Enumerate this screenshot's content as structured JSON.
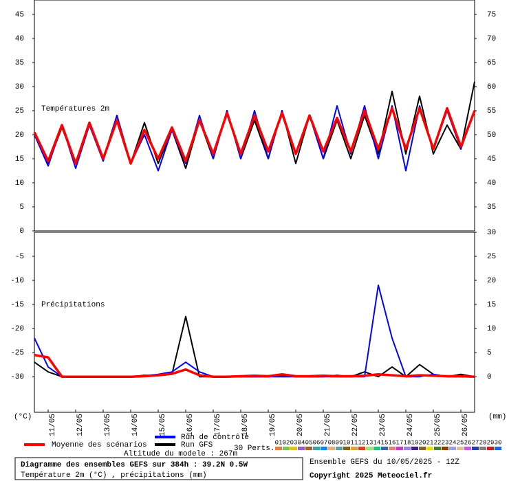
{
  "chart_data": [
    {
      "type": "line",
      "label": "Températures 2m",
      "y_unit": "(°C)",
      "y2_unit": "(mm)",
      "x": [
        0,
        12,
        24,
        36,
        48,
        60,
        72,
        84,
        96,
        108,
        120,
        132,
        144,
        156,
        168,
        180,
        192,
        204,
        216,
        228,
        240,
        252,
        264,
        276,
        288,
        300,
        312,
        324,
        336,
        348,
        360,
        372,
        384
      ],
      "xlim": [
        0,
        384
      ],
      "ylim": [
        0,
        48
      ],
      "yticks": [
        0,
        5,
        10,
        15,
        20,
        25,
        30,
        35,
        40,
        45
      ],
      "y2lim": [
        30,
        78
      ],
      "y2ticks": [
        35,
        40,
        45,
        50,
        55,
        60,
        65,
        70,
        75
      ],
      "series": [
        {
          "name": "Moyenne des scénarios",
          "color": "#ff0000",
          "values": [
            20.5,
            14.5,
            22,
            14,
            22.5,
            15,
            23,
            14,
            21,
            15,
            21.5,
            14.5,
            23,
            16,
            24.5,
            16,
            24,
            16.5,
            24.5,
            16,
            24,
            16.5,
            23.5,
            16.5,
            25,
            17,
            25.5,
            17,
            25.5,
            17,
            25.5,
            17.5,
            25
          ]
        },
        {
          "name": "Run de contrôle",
          "color": "#0000ff",
          "values": [
            20,
            13.5,
            22,
            13,
            22,
            14.5,
            24,
            14,
            20,
            12.5,
            21,
            14,
            24,
            15,
            25,
            15,
            25,
            15,
            25,
            16,
            24,
            15,
            26,
            16,
            26,
            15,
            26,
            12.5,
            26,
            17,
            25,
            17,
            25
          ]
        },
        {
          "name": "Run GFS",
          "color": "#000000",
          "values": [
            20,
            14,
            21.5,
            14,
            22,
            15,
            24,
            14,
            22.5,
            14,
            21,
            13,
            23,
            15,
            25,
            15,
            23,
            15,
            25,
            14,
            24,
            15,
            23,
            15,
            24,
            16,
            29,
            16,
            28,
            16,
            22,
            17,
            31
          ]
        }
      ]
    },
    {
      "type": "line",
      "label": "Précipitations",
      "x": [
        0,
        12,
        24,
        36,
        48,
        60,
        72,
        84,
        96,
        108,
        120,
        132,
        144,
        156,
        168,
        180,
        192,
        204,
        216,
        228,
        240,
        252,
        264,
        276,
        288,
        300,
        312,
        324,
        336,
        348,
        360,
        372,
        384
      ],
      "xlim": [
        0,
        384
      ],
      "xticks": [
        {
          "value": 12,
          "label": "11/05"
        },
        {
          "value": 36,
          "label": "12/05"
        },
        {
          "value": 60,
          "label": "13/05"
        },
        {
          "value": 84,
          "label": "14/05"
        },
        {
          "value": 108,
          "label": "15/05"
        },
        {
          "value": 132,
          "label": "16/05"
        },
        {
          "value": 156,
          "label": "17/05"
        },
        {
          "value": 180,
          "label": "18/05"
        },
        {
          "value": 204,
          "label": "19/05"
        },
        {
          "value": 228,
          "label": "20/05"
        },
        {
          "value": 252,
          "label": "21/05"
        },
        {
          "value": 276,
          "label": "22/05"
        },
        {
          "value": 300,
          "label": "23/05"
        },
        {
          "value": 324,
          "label": "24/05"
        },
        {
          "value": 348,
          "label": "25/05"
        },
        {
          "value": 372,
          "label": "26/05"
        }
      ],
      "ylim": [
        -37.4,
        0
      ],
      "yticks": [
        -30,
        -25,
        -20,
        -15,
        -10,
        -5
      ],
      "y2lim": [
        -7.4,
        30
      ],
      "y2ticks": [
        0,
        5,
        10,
        15,
        20,
        25,
        30
      ],
      "series": [
        {
          "name": "Moyenne des scénarios",
          "color": "#ff0000",
          "axis": "y2",
          "values": [
            4.5,
            4,
            0,
            0,
            0,
            0,
            0,
            0,
            0.1,
            0.3,
            0.6,
            1.5,
            0.3,
            0,
            0,
            0.1,
            0.2,
            0.1,
            0.5,
            0.1,
            0.1,
            0.2,
            0.1,
            0.1,
            0.2,
            0.5,
            0.3,
            0.1,
            0.3,
            0.2,
            0.1,
            0.1,
            0
          ]
        },
        {
          "name": "Run de contrôle",
          "color": "#0000ff",
          "axis": "y2",
          "values": [
            8,
            2,
            0,
            0,
            0,
            0,
            0,
            0,
            0.2,
            0.5,
            1,
            3,
            1,
            0,
            0,
            0,
            0,
            0,
            0,
            0,
            0,
            0,
            0,
            0,
            0,
            19,
            8,
            0,
            0,
            0.5,
            0,
            0,
            0
          ]
        },
        {
          "name": "Run GFS",
          "color": "#000000",
          "axis": "y2",
          "values": [
            3,
            1,
            0,
            0,
            0,
            0,
            0,
            0,
            0.3,
            0.2,
            0.5,
            12.5,
            0,
            0,
            0,
            0,
            0,
            0,
            0.2,
            0,
            0,
            0,
            0.3,
            0,
            1,
            0,
            2,
            0,
            2.5,
            0.5,
            0,
            0.5,
            0
          ]
        }
      ]
    }
  ],
  "altitude": "Altitude du modele : 267m",
  "perturbations": {
    "label": "30 Perts.",
    "members": [
      {
        "name": "01",
        "color": "#e08040"
      },
      {
        "name": "02",
        "color": "#80c060"
      },
      {
        "name": "03",
        "color": "#e0c020"
      },
      {
        "name": "04",
        "color": "#9060c0"
      },
      {
        "name": "05",
        "color": "#a06030"
      },
      {
        "name": "06",
        "color": "#40a0a0"
      },
      {
        "name": "07",
        "color": "#2080e0"
      },
      {
        "name": "08",
        "color": "#e0b080"
      },
      {
        "name": "09",
        "color": "#60a0a0"
      },
      {
        "name": "10",
        "color": "#806020"
      },
      {
        "name": "11",
        "color": "#e0a040"
      },
      {
        "name": "12",
        "color": "#e04020"
      },
      {
        "name": "13",
        "color": "#a0e080"
      },
      {
        "name": "14",
        "color": "#20c080"
      },
      {
        "name": "15",
        "color": "#4060a0"
      },
      {
        "name": "16",
        "color": "#e08080"
      },
      {
        "name": "17",
        "color": "#c040c0"
      },
      {
        "name": "18",
        "color": "#a080e0"
      },
      {
        "name": "19",
        "color": "#402080"
      },
      {
        "name": "20",
        "color": "#806040"
      },
      {
        "name": "21",
        "color": "#e0e020"
      },
      {
        "name": "22",
        "color": "#408040"
      },
      {
        "name": "23",
        "color": "#804000"
      },
      {
        "name": "24",
        "color": "#a0a0e0"
      },
      {
        "name": "25",
        "color": "#e0c0a0"
      },
      {
        "name": "26",
        "color": "#c060e0"
      },
      {
        "name": "27",
        "color": "#2040a0"
      },
      {
        "name": "28",
        "color": "#808080"
      },
      {
        "name": "29",
        "color": "#c02020"
      },
      {
        "name": "30",
        "color": "#2060e0"
      }
    ]
  },
  "footer": {
    "title": "Diagramme des ensembles GEFS sur 384h : 39.2N 0.5W",
    "subtitle": "Température 2m (°C) , précipitations (mm)",
    "run": "Ensemble GEFS du 10/05/2025 - 12Z",
    "copyright": "Copyright 2025 Meteociel.fr"
  }
}
